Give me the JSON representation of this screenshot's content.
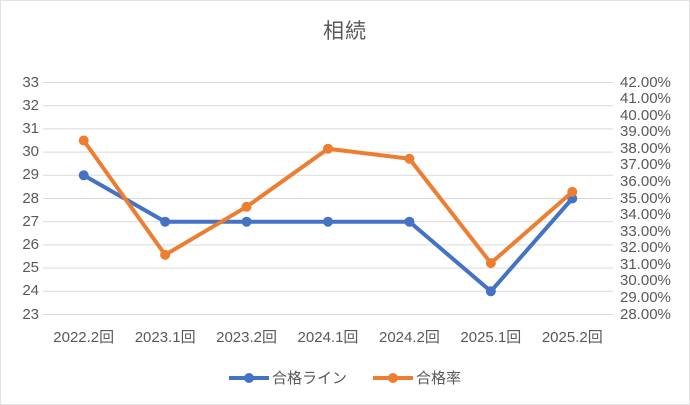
{
  "window": {
    "background": "#ffffff",
    "border_color": "#e2e2e2"
  },
  "chart_data": {
    "type": "line",
    "title": "相続",
    "categories": [
      "2022.2回",
      "2023.1回",
      "2023.2回",
      "2024.1回",
      "2024.2回",
      "2025.1回",
      "2025.2回"
    ],
    "series": [
      {
        "name": "合格ライン",
        "axis": "left",
        "color": "#4472C4",
        "values": [
          29,
          27,
          27,
          27,
          27,
          24,
          28
        ]
      },
      {
        "name": "合格率",
        "axis": "right",
        "color": "#ED7D31",
        "unit": "%",
        "values": [
          38.5,
          31.6,
          34.5,
          38.0,
          37.4,
          31.1,
          35.4
        ]
      }
    ],
    "left_axis": {
      "min": 23,
      "max": 33,
      "step": 1,
      "tick_labels": [
        "33",
        "32",
        "31",
        "30",
        "29",
        "28",
        "27",
        "26",
        "25",
        "24",
        "23"
      ]
    },
    "right_axis": {
      "min": 28,
      "max": 42,
      "step": 1,
      "tick_labels": [
        "42.00%",
        "41.00%",
        "40.00%",
        "39.00%",
        "38.00%",
        "37.00%",
        "36.00%",
        "35.00%",
        "34.00%",
        "33.00%",
        "32.00%",
        "31.00%",
        "30.00%",
        "29.00%",
        "28.00%"
      ]
    },
    "legend": {
      "position": "bottom",
      "entries": [
        "合格ライン",
        "合格率"
      ]
    },
    "grid": true,
    "grid_color": "#D9D9D9",
    "text_color": "#595959"
  }
}
